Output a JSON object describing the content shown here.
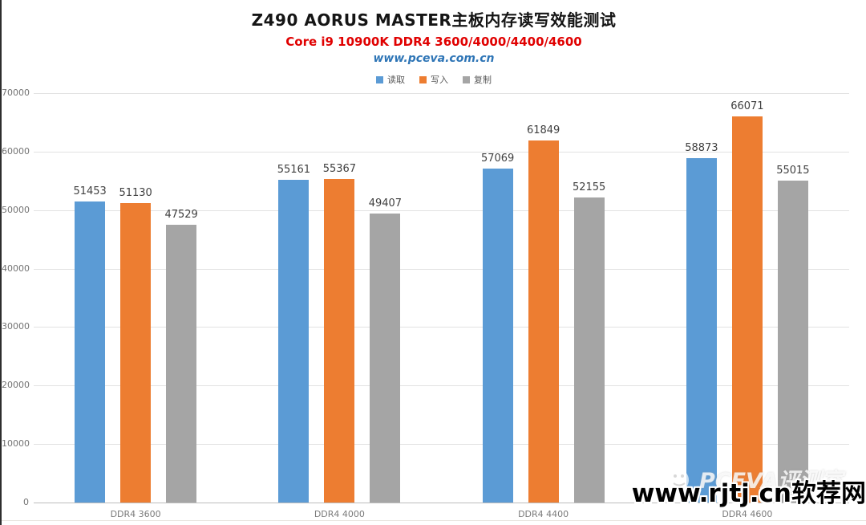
{
  "header": {
    "title": "Z490 AORUS MASTER主板内存读写效能测试",
    "subtitle": "Core i9 10900K DDR4 3600/4000/4400/4600",
    "website": "www.pceva.com.cn"
  },
  "chart_data": {
    "type": "bar",
    "title": "Z490 AORUS MASTER主板内存读写效能测试",
    "subtitle": "Core i9 10900K DDR4 3600/4000/4400/4600",
    "categories": [
      "DDR4 3600",
      "DDR4 4000",
      "DDR4 4400",
      "DDR4 4600"
    ],
    "series": [
      {
        "name": "读取",
        "color": "#5B9BD5",
        "values": [
          51453,
          55161,
          57069,
          58873
        ]
      },
      {
        "name": "写入",
        "color": "#ED7D31",
        "values": [
          51130,
          55367,
          61849,
          66071
        ]
      },
      {
        "name": "复制",
        "color": "#A5A5A5",
        "values": [
          47529,
          49407,
          52155,
          55015
        ]
      }
    ],
    "xlabel": "",
    "ylabel": "",
    "ylim": [
      0,
      70000
    ],
    "ytick_interval": 10000,
    "grid": true,
    "legend_position": "top",
    "data_labels": true
  },
  "watermarks": {
    "pceva_logo_text": "PCEVA评测室",
    "site_text": "www.rjtj.cn软荐网"
  },
  "colors": {
    "read_bar": "#5B9BD5",
    "write_bar": "#ED7D31",
    "copy_bar": "#A5A5A5",
    "subtitle_red": "#e00000",
    "website_blue": "#2e75b6",
    "gridline": "#e2e2e2",
    "axis_text": "#737373"
  }
}
